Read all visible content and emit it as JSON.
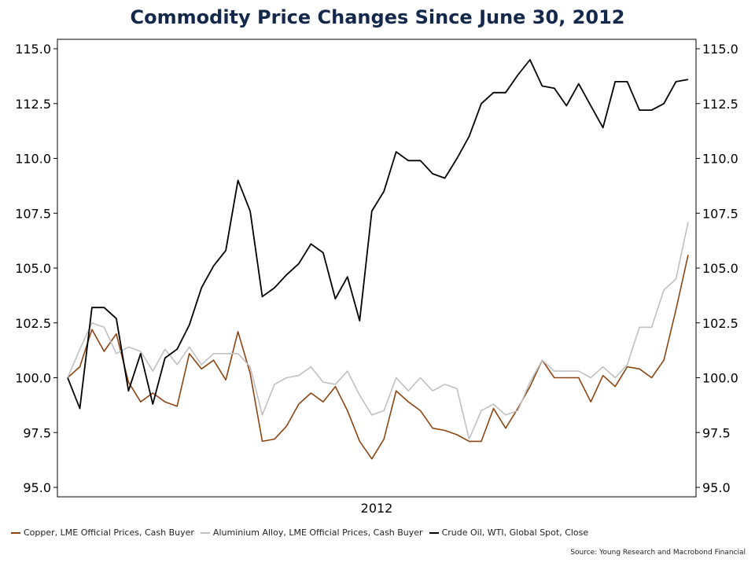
{
  "chart_data": {
    "type": "line",
    "title": "Commodity Price Changes Since June 30, 2012",
    "xlabel": "2012",
    "ylabel": "",
    "ylim": [
      95.0,
      115.0
    ],
    "yticks": [
      "95.0",
      "97.5",
      "100.0",
      "102.5",
      "105.0",
      "107.5",
      "110.0",
      "112.5",
      "115.0"
    ],
    "ytick_values": [
      95.0,
      97.5,
      100.0,
      102.5,
      105.0,
      107.5,
      110.0,
      112.5,
      115.0
    ],
    "x": [
      0,
      1,
      2,
      3,
      4,
      5,
      6,
      7,
      8,
      9,
      10,
      11,
      12,
      13,
      14,
      15,
      16,
      17,
      18,
      19,
      20,
      21,
      22,
      23,
      24,
      25,
      26,
      27,
      28,
      29,
      30,
      31,
      32,
      33,
      34,
      35,
      36,
      37,
      38,
      39,
      40,
      41,
      42,
      43,
      44,
      45,
      46,
      47,
      48,
      49,
      50,
      51
    ],
    "series": [
      {
        "name": "Copper, LME Official Prices, Cash Buyer",
        "color": "#8b4513",
        "values": [
          100.0,
          100.5,
          102.2,
          101.2,
          102.0,
          99.8,
          98.9,
          99.3,
          98.9,
          98.7,
          101.1,
          100.4,
          100.8,
          99.9,
          102.1,
          100.2,
          97.1,
          97.2,
          97.8,
          98.8,
          99.3,
          98.9,
          99.6,
          98.5,
          97.1,
          96.3,
          97.2,
          99.4,
          98.9,
          98.5,
          97.7,
          97.6,
          97.4,
          97.1,
          97.1,
          98.6,
          97.7,
          98.6,
          99.6,
          100.8,
          100.0,
          100.0,
          100.0,
          98.9,
          100.1,
          99.6,
          100.5,
          100.4,
          100.0,
          100.8,
          103.1,
          105.6
        ]
      },
      {
        "name": "Aluminium Alloy, LME Official Prices, Cash Buyer",
        "color": "#c0c0c0",
        "values": [
          100.0,
          101.3,
          102.5,
          102.3,
          101.1,
          101.4,
          101.2,
          100.3,
          101.3,
          100.6,
          101.4,
          100.6,
          101.1,
          101.1,
          101.1,
          100.5,
          98.3,
          99.7,
          100.0,
          100.1,
          100.5,
          99.8,
          99.7,
          100.3,
          99.2,
          98.3,
          98.5,
          100.0,
          99.4,
          100.0,
          99.4,
          99.7,
          99.5,
          97.2,
          98.5,
          98.8,
          98.3,
          98.5,
          99.8,
          100.8,
          100.3,
          100.3,
          100.3,
          100.0,
          100.5,
          100.0,
          100.6,
          102.3,
          102.3,
          104.0,
          104.5,
          107.1
        ]
      },
      {
        "name": "Crude Oil, WTI, Global Spot, Close",
        "color": "#000000",
        "values": [
          100.0,
          98.6,
          103.2,
          103.2,
          102.7,
          99.4,
          101.1,
          98.8,
          100.9,
          101.3,
          102.4,
          104.1,
          105.1,
          105.8,
          109.0,
          107.6,
          103.7,
          104.1,
          104.7,
          105.2,
          106.1,
          105.7,
          103.6,
          104.6,
          102.6,
          107.6,
          108.5,
          110.3,
          109.9,
          109.9,
          109.3,
          109.1,
          110.0,
          111.0,
          112.5,
          113.0,
          113.0,
          113.8,
          114.5,
          113.3,
          113.2,
          112.4,
          113.4,
          112.4,
          111.4,
          113.5,
          113.5,
          112.2,
          112.2,
          112.5,
          113.5,
          113.6
        ]
      }
    ]
  },
  "source": "Source: Young Research and Macrobond Financial"
}
